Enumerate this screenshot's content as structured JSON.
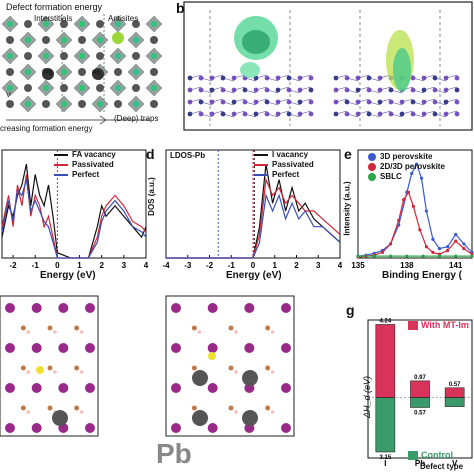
{
  "figure": {
    "panels": {
      "a": {
        "label": "",
        "title": "Defect formation energy",
        "col_interstitials": "Interstitials",
        "col_antisites": "Antisites",
        "site_pb": "Pb",
        "site_pbi": "Pb",
        "site_vi": "V",
        "footer_left": "creasing formation energy",
        "footer_right": "(Deep) traps"
      },
      "b": {
        "label": "b"
      },
      "c": {
        "label": "",
        "xlabel": "Energy (eV)",
        "legend": [
          "FA vacancy",
          "Passivated",
          "Perfect"
        ],
        "colors": [
          "#111111",
          "#d0283a",
          "#3a4fb5"
        ]
      },
      "d": {
        "label": "d",
        "inset": "LDOS-Pb",
        "ylabel": "DOS (a.u.)",
        "xlabel": "Energy (eV)",
        "legend": [
          "I vacancy",
          "Passivated",
          "Perfect"
        ],
        "colors": [
          "#111111",
          "#d0283a",
          "#3a4fb5"
        ]
      },
      "e": {
        "label": "e",
        "ylabel": "Intensity (a.u.)",
        "xlabel": "Binding Energy (",
        "legend": [
          "3D perovskite",
          "2D/3D perovskite",
          "SBLC"
        ],
        "colors": [
          "#3a5bd0",
          "#d0283a",
          "#2aa84a"
        ]
      },
      "f": {
        "label": "",
        "caption": "Pb"
      },
      "g": {
        "label": "g",
        "ylabel": "ΔH_d (eV)",
        "xlabel": "Defect type",
        "legend_top": "With MT-Im",
        "legend_bottom": "Control",
        "colors": {
          "top": "#d8335a",
          "bottom": "#3a9a6a"
        }
      }
    }
  },
  "chart_data": [
    {
      "type": "line",
      "panel": "c",
      "title": "",
      "xlabel": "Energy (eV)",
      "ylabel": "",
      "xlim": [
        -2.5,
        4
      ],
      "xticks": [
        -2,
        -1,
        0,
        1,
        2,
        3,
        4
      ],
      "series": [
        {
          "name": "FA vacancy",
          "x": [
            -2.5,
            -2.2,
            -2.0,
            -1.8,
            -1.6,
            -1.4,
            -1.2,
            -1.0,
            -0.8,
            -0.6,
            -0.4,
            -0.2,
            0.0,
            0.6,
            1.0,
            1.4,
            1.8,
            2.0,
            2.2,
            2.6,
            3.0,
            3.4,
            3.8,
            4.0
          ],
          "y": [
            0.2,
            0.5,
            0.4,
            0.6,
            0.7,
            0.9,
            0.5,
            0.8,
            0.6,
            0.5,
            0.7,
            0.4,
            0.05,
            0.0,
            0.0,
            0.0,
            0.3,
            0.5,
            0.4,
            0.5,
            0.4,
            0.3,
            0.2,
            0.3
          ]
        },
        {
          "name": "Passivated",
          "x": [
            -2.5,
            -2.2,
            -2.0,
            -1.8,
            -1.6,
            -1.4,
            -1.2,
            -1.0,
            -0.8,
            -0.6,
            -0.4,
            -0.2,
            0.0,
            0.6,
            1.0,
            1.4,
            1.8,
            2.0,
            2.2,
            2.6,
            3.0,
            3.4,
            3.8,
            4.0
          ],
          "y": [
            0.3,
            0.6,
            0.3,
            0.7,
            0.5,
            0.8,
            0.4,
            0.6,
            0.5,
            0.3,
            0.4,
            0.2,
            0.0,
            0.0,
            0.0,
            0.0,
            0.2,
            0.4,
            0.5,
            0.6,
            0.5,
            0.35,
            0.3,
            0.25
          ]
        },
        {
          "name": "Perfect",
          "x": [
            -2.5,
            -2.2,
            -2.0,
            -1.8,
            -1.6,
            -1.4,
            -1.2,
            -1.0,
            -0.8,
            -0.6,
            -0.4,
            -0.2,
            0.0,
            0.6,
            1.0,
            1.4,
            1.8,
            2.0,
            2.2,
            2.6,
            3.0,
            3.4,
            3.8,
            4.0
          ],
          "y": [
            0.25,
            0.55,
            0.35,
            0.65,
            0.6,
            0.75,
            0.45,
            0.55,
            0.45,
            0.35,
            0.3,
            0.15,
            0.0,
            0.0,
            0.0,
            0.0,
            0.15,
            0.35,
            0.45,
            0.55,
            0.45,
            0.3,
            0.25,
            0.2
          ]
        }
      ]
    },
    {
      "type": "line",
      "panel": "d",
      "title": "",
      "xlabel": "Energy (eV)",
      "ylabel": "DOS (a.u.)",
      "xlim": [
        -4,
        4
      ],
      "xticks": [
        -4,
        -3,
        -2,
        -1,
        0,
        1,
        2,
        3,
        4
      ],
      "series": [
        {
          "name": "I vacancy",
          "x": [
            -4,
            -3.5,
            -3,
            -2.5,
            -2,
            -1.5,
            -1,
            -0.5,
            0,
            0.3,
            0.6,
            0.9,
            1.2,
            1.5,
            1.8,
            2.1,
            2.4,
            2.8,
            3.2,
            3.6,
            4
          ],
          "y": [
            0,
            0,
            0,
            0,
            0,
            0,
            0,
            0,
            0,
            0.2,
            0.6,
            0.35,
            0.5,
            0.3,
            0.45,
            0.3,
            0.35,
            0.25,
            0.2,
            0.15,
            0.1
          ]
        },
        {
          "name": "Passivated",
          "x": [
            -4,
            -3.5,
            -3,
            -2.5,
            -2,
            -1.5,
            -1,
            -0.5,
            0,
            0.3,
            0.6,
            0.9,
            1.2,
            1.5,
            1.8,
            2.1,
            2.4,
            2.8,
            3.2,
            3.6,
            4
          ],
          "y": [
            0,
            0,
            0,
            0,
            0,
            0,
            0,
            0,
            0,
            0.15,
            0.5,
            0.4,
            0.45,
            0.35,
            0.4,
            0.35,
            0.3,
            0.3,
            0.25,
            0.2,
            0.15
          ]
        },
        {
          "name": "Perfect",
          "x": [
            -4,
            -3.5,
            -3,
            -2.5,
            -2,
            -1.5,
            -1,
            -0.5,
            0,
            0.3,
            0.6,
            0.9,
            1.2,
            1.5,
            1.8,
            2.1,
            2.4,
            2.8,
            3.2,
            3.6,
            4
          ],
          "y": [
            0,
            0,
            0,
            0,
            0,
            0,
            0,
            0,
            0,
            0.1,
            0.4,
            0.3,
            0.4,
            0.25,
            0.35,
            0.25,
            0.3,
            0.2,
            0.2,
            0.15,
            0.1
          ]
        }
      ]
    },
    {
      "type": "line",
      "panel": "e",
      "title": "",
      "xlabel": "Binding Energy (",
      "ylabel": "Intensity (a.u.)",
      "xlim": [
        135,
        142
      ],
      "xticks": [
        135,
        138,
        141
      ],
      "series": [
        {
          "name": "3D perovskite",
          "x": [
            135,
            135.5,
            136,
            136.5,
            137,
            137.5,
            138,
            138.3,
            138.6,
            138.9,
            139.2,
            139.6,
            140,
            140.5,
            141,
            141.5,
            142
          ],
          "y": [
            0.02,
            0.03,
            0.05,
            0.08,
            0.15,
            0.35,
            0.7,
            0.9,
            1.0,
            0.85,
            0.5,
            0.2,
            0.1,
            0.12,
            0.25,
            0.15,
            0.06
          ]
        },
        {
          "name": "2D/3D perovskite",
          "x": [
            135,
            135.5,
            136,
            136.5,
            137,
            137.5,
            137.8,
            138.1,
            138.4,
            138.8,
            139.2,
            139.6,
            140,
            140.5,
            141,
            141.5,
            142
          ],
          "y": [
            0.01,
            0.02,
            0.03,
            0.06,
            0.15,
            0.4,
            0.62,
            0.7,
            0.55,
            0.3,
            0.12,
            0.06,
            0.04,
            0.08,
            0.18,
            0.1,
            0.04
          ]
        },
        {
          "name": "SBLC",
          "x": [
            135,
            136,
            137,
            138,
            139,
            140,
            141,
            142
          ],
          "y": [
            0.02,
            0.02,
            0.02,
            0.02,
            0.02,
            0.02,
            0.02,
            0.02
          ]
        }
      ]
    },
    {
      "type": "bar",
      "panel": "g",
      "title": "",
      "xlabel": "Defect type",
      "ylabel": "ΔH_d (eV)",
      "categories": [
        "I_Pb",
        "Pb_I",
        "V_I"
      ],
      "category_labels": [
        "I",
        "Pb",
        "V"
      ],
      "ylim": [
        -3.5,
        4.5
      ],
      "series": [
        {
          "name": "With MT-Im",
          "values": [
            4.24,
            0.97,
            0.57
          ]
        },
        {
          "name": "Control",
          "values": [
            -3.15,
            -0.57,
            -0.52
          ]
        }
      ],
      "value_labels": {
        "With MT-Im": [
          "4.24",
          "0.97",
          "0.57"
        ],
        "Control": [
          "3.15",
          "0.57",
          ""
        ]
      }
    }
  ]
}
